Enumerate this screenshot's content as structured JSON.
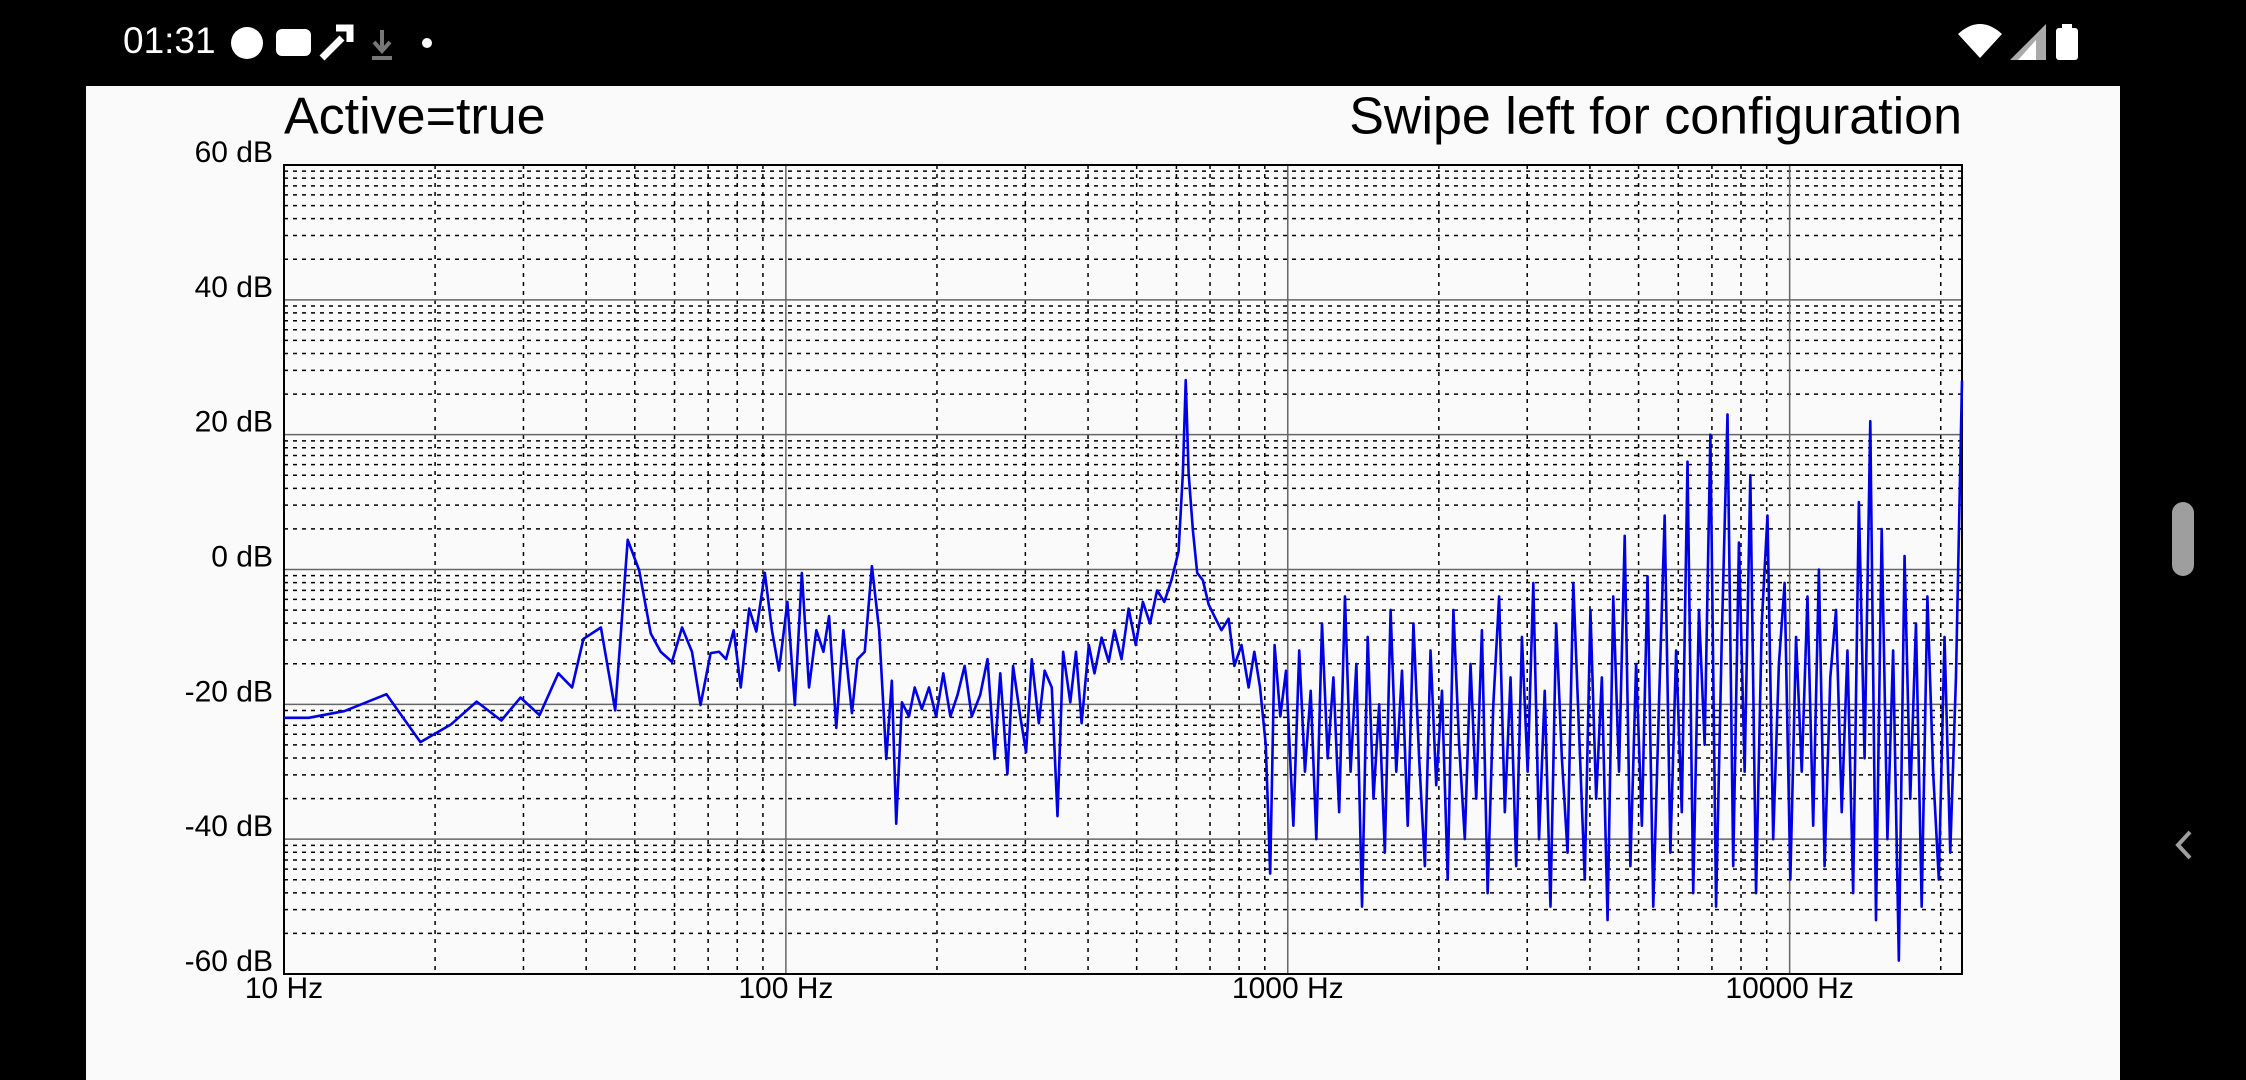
{
  "status_bar": {
    "time": "01:31"
  },
  "header": {
    "status": "Active=true",
    "hint": "Swipe left for configuration"
  },
  "chart_data": {
    "type": "line",
    "color": "#0000e6",
    "xscale": "log",
    "grid": true,
    "minor_grid": true,
    "xlim": [
      10,
      22050
    ],
    "ylim": [
      -60,
      60
    ],
    "xticks": [
      {
        "value": 10,
        "label": "10 Hz"
      },
      {
        "value": 100,
        "label": "100 Hz"
      },
      {
        "value": 1000,
        "label": "1000 Hz"
      },
      {
        "value": 10000,
        "label": "10000 Hz"
      }
    ],
    "yticks": [
      {
        "value": -60,
        "label": "-60 dB"
      },
      {
        "value": -40,
        "label": "-40 dB"
      },
      {
        "value": -20,
        "label": "-20 dB"
      },
      {
        "value": 0,
        "label": "0 dB"
      },
      {
        "value": 20,
        "label": "20 dB"
      },
      {
        "value": 40,
        "label": "40 dB"
      },
      {
        "value": 60,
        "label": "60 dB"
      }
    ],
    "x": [
      10,
      11.2,
      13.2,
      16,
      18.7,
      21.5,
      24.2,
      27.1,
      29.6,
      32.3,
      35.2,
      37.5,
      39.5,
      42.8,
      45.7,
      48.4,
      51,
      53.8,
      56.3,
      59.3,
      62.1,
      65,
      67.6,
      70.8,
      73.6,
      76,
      78.7,
      81.3,
      84.5,
      87.3,
      90.8,
      93.8,
      96.9,
      100.7,
      104.2,
      107.6,
      111.2,
      115,
      118.8,
      121.9,
      126,
      130.2,
      135.4,
      138.9,
      143.6,
      148.4,
      153.4,
      158.5,
      162.6,
      165.9,
      170.3,
      175.9,
      180.6,
      186.6,
      192.8,
      199.2,
      205.9,
      212.7,
      219.8,
      227.1,
      234.6,
      243.9,
      252.2,
      260.5,
      267.4,
      276.3,
      283.6,
      293.1,
      301,
      309,
      319.2,
      327.8,
      338.7,
      347.7,
      356.8,
      368.7,
      378.5,
      388.4,
      401.4,
      412,
      425.7,
      439.8,
      451.4,
      466.4,
      481.9,
      497.9,
      514.4,
      531.5,
      549.2,
      567.5,
      586.4,
      605.9,
      618,
      626.2,
      634.5,
      647.1,
      660,
      677.5,
      695.6,
      713.9,
      737.7,
      762.3,
      782.6,
      808.7,
      835.6,
      857.8,
      880.6,
      904,
      922.5,
      941.4,
      966.4,
      992,
      1026,
      1054,
      1082,
      1111,
      1140,
      1170,
      1201,
      1233,
      1266,
      1300,
      1334,
      1370,
      1406,
      1443,
      1482,
      1521,
      1561,
      1603,
      1645,
      1689,
      1734,
      1780,
      1827,
      1876,
      1925,
      1976,
      2029,
      2083,
      2138,
      2195,
      2253,
      2313,
      2374,
      2437,
      2502,
      2568,
      2637,
      2707,
      2779,
      2852,
      2928,
      3006,
      3085,
      3167,
      3251,
      3338,
      3426,
      3517,
      3610,
      3706,
      3805,
      3906,
      4009,
      4116,
      4225,
      4337,
      4452,
      4571,
      4692,
      4816,
      4944,
      5076,
      5210,
      5349,
      5491,
      5636,
      5786,
      5940,
      6097,
      6259,
      6425,
      6596,
      6771,
      6951,
      7135,
      7325,
      7519,
      7719,
      7924,
      8134,
      8350,
      8572,
      8799,
      9033,
      9273,
      9519,
      9772,
      10032,
      10298,
      10571,
      10852,
      11140,
      11436,
      11739,
      12051,
      12371,
      12699,
      13036,
      13382,
      13738,
      14102,
      14477,
      14861,
      15255,
      15660,
      16076,
      16503,
      16941,
      17391,
      17853,
      18327,
      18813,
      19313,
      19826,
      20352,
      20892,
      21447,
      22050
    ],
    "values": [
      -22,
      -22,
      -21,
      -18.5,
      -25.6,
      -23,
      -19.6,
      -22.4,
      -19,
      -21.6,
      -15.4,
      -17.5,
      -10.3,
      -8.6,
      -20.9,
      4.4,
      -0.1,
      -9.5,
      -12.2,
      -13.7,
      -8.6,
      -12.2,
      -20.1,
      -12.4,
      -12.2,
      -13.3,
      -9,
      -17.5,
      -5.8,
      -9.2,
      -0.5,
      -9,
      -15,
      -4.8,
      -20.1,
      -0.5,
      -17.5,
      -9,
      -12.2,
      -6.9,
      -23.5,
      -9,
      -21.3,
      -13.3,
      -12.2,
      0.5,
      -9,
      -28.1,
      -16.5,
      -37.7,
      -19.7,
      -21.8,
      -17.5,
      -20.7,
      -17.5,
      -21.8,
      -15.4,
      -21.8,
      -18.6,
      -14.3,
      -21.8,
      -18.6,
      -13.3,
      -28.1,
      -15.4,
      -30.3,
      -14.3,
      -21.8,
      -27.1,
      -13.3,
      -22.8,
      -15,
      -17.5,
      -36.6,
      -12.2,
      -19.7,
      -12.2,
      -22.8,
      -11.2,
      -15.4,
      -10.1,
      -13.7,
      -9,
      -13.3,
      -5.8,
      -11.2,
      -4.8,
      -8,
      -3.1,
      -4.8,
      -1.6,
      2.7,
      14.3,
      28.1,
      14.3,
      5.8,
      -0.5,
      -1.6,
      -5.2,
      -6.9,
      -9,
      -7.3,
      -14.3,
      -11.2,
      -17.5,
      -12.2,
      -17.5,
      -26,
      -45.1,
      -11.2,
      -21.8,
      -15,
      -38,
      -12,
      -30,
      -18,
      -40,
      -8,
      -28,
      -16,
      -36,
      -4,
      -30,
      -14,
      -50,
      -10,
      -34,
      -20,
      -42,
      -6,
      -30,
      -15,
      -38,
      -8,
      -28,
      -44,
      -12,
      -32,
      -18,
      -46,
      -6,
      -26,
      -40,
      -14,
      -34,
      -9,
      -48,
      -20,
      -4,
      -36,
      -16,
      -44,
      -10,
      -30,
      -2,
      -40,
      -18,
      -50,
      -8,
      -28,
      -42,
      -2,
      -24,
      -46,
      -6,
      -34,
      -16,
      -52,
      -4,
      -30,
      5,
      -44,
      -14,
      -38,
      -1,
      -50,
      -20,
      8,
      -42,
      -12,
      -36,
      16,
      -48,
      -6,
      -26,
      20,
      -50,
      -10,
      23,
      -44,
      4,
      -30,
      14,
      -48,
      -8,
      8,
      -40,
      -14,
      -2,
      -46,
      -10,
      -30,
      -4,
      -38,
      0,
      -44,
      -16,
      -6,
      -36,
      -12,
      -48,
      10,
      -28,
      22,
      -52,
      6,
      -40,
      -12,
      -58,
      2,
      -34,
      -8,
      -50,
      -4,
      -30,
      -46,
      -10,
      -42,
      -16,
      28
    ]
  }
}
